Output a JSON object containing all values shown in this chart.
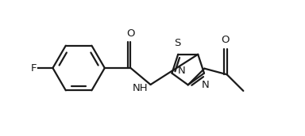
{
  "background_color": "#ffffff",
  "line_color": "#1a1a1a",
  "line_width": 1.6,
  "fig_width": 3.84,
  "fig_height": 1.72,
  "dpi": 100,
  "xlim": [
    0,
    11
  ],
  "ylim": [
    0,
    5
  ]
}
